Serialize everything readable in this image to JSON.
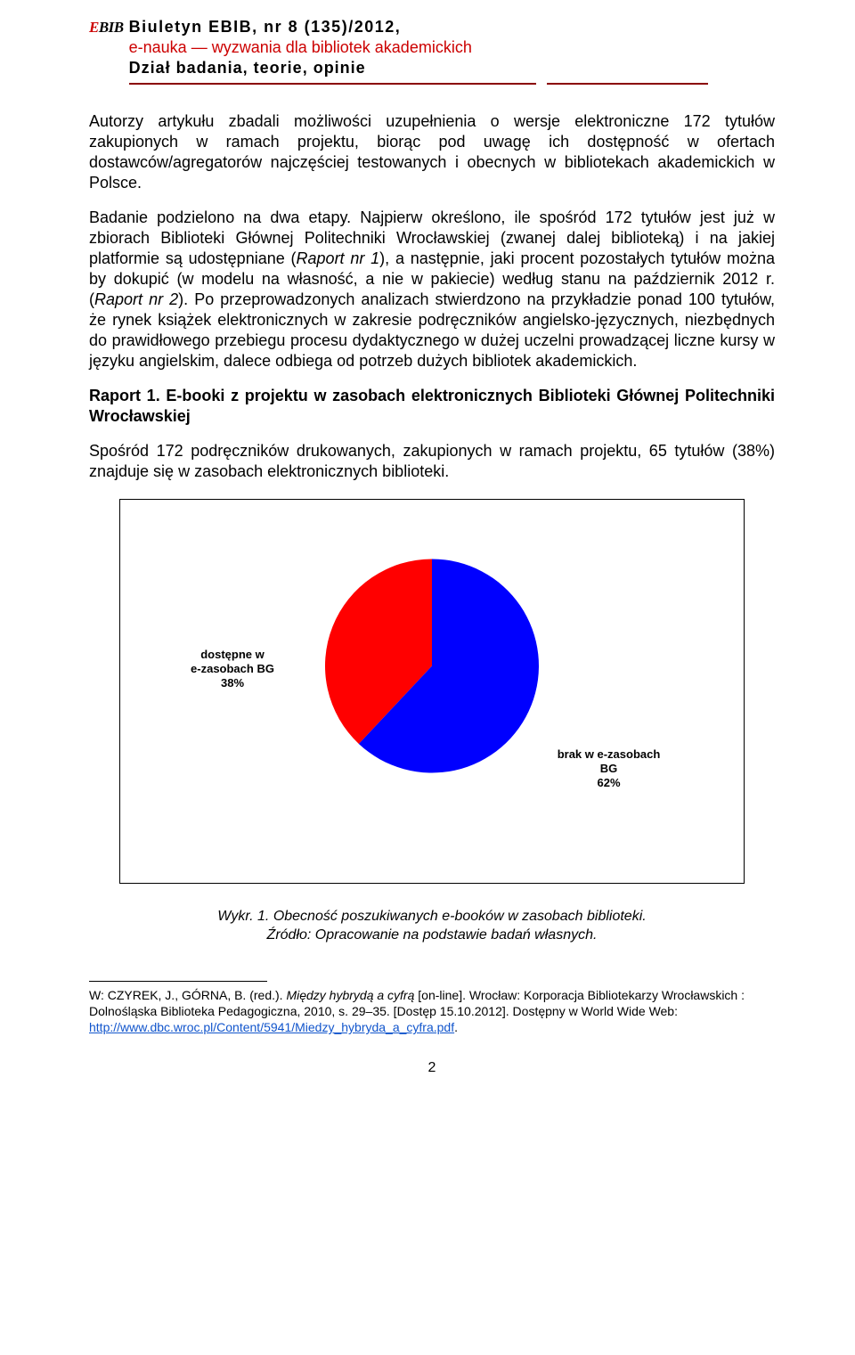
{
  "header": {
    "logo_e": "E",
    "logo_rest": "BIB",
    "line1": "Biuletyn EBIB, nr 8 (135)/2012,",
    "line2": "e-nauka — wyzwania dla bibliotek akademickich",
    "line3": "Dział badania, teorie, opinie"
  },
  "body": {
    "p1": "Autorzy artykułu zbadali możliwości uzupełnienia o wersje elektroniczne 172 tytułów zakupionych w ramach projektu, biorąc pod uwagę ich dostępność w ofertach dostawców/agregatorów najczęściej testowanych i obecnych w bibliotekach akademickich w Polsce.",
    "p2a": "Badanie podzielono na dwa etapy. Najpierw określono, ile spośród 172 tytułów jest już w zbiorach Biblioteki Głównej Politechniki Wrocławskiej (zwanej dalej biblioteką) i na jakiej platformie są udostępniane (",
    "p2_em1": "Raport nr 1",
    "p2b": "), a następnie, jaki procent pozostałych tytułów można by dokupić (w modelu na własność, a nie w pakiecie) według stanu na październik 2012 r. (",
    "p2_em2": "Raport nr 2",
    "p2c": "). Po przeprowadzonych analizach stwierdzono na przykładzie ponad 100 tytułów, że rynek książek elektronicznych w zakresie podręczników angielsko-języcznych, niezbędnych do prawidłowego przebiegu procesu dydaktycznego w dużej uczelni prowadzącej liczne kursy w języku angielskim, dalece odbiega od potrzeb dużych bibliotek akademickich.",
    "p3_bold": "Raport 1. E-booki z projektu w zasobach elektronicznych Biblioteki Głównej Politechniki Wrocławskiej",
    "p4": "Spośród 172 podręczników drukowanych, zakupionych w ramach projektu, 65 tytułów (38%) znajduje się w zasobach elektronicznych biblioteki."
  },
  "chart": {
    "type": "pie",
    "radius": 120,
    "slices": [
      {
        "value": 38,
        "color": "#ff0000",
        "label_lines": [
          "dostępne w",
          "e-zasobach BG",
          "38%"
        ]
      },
      {
        "value": 62,
        "color": "#0000ff",
        "label_lines": [
          "brak w e-zasobach",
          "BG",
          "62%"
        ]
      }
    ],
    "border_color": "#000000",
    "background_color": "#ffffff"
  },
  "caption_line1": "Wykr. 1. Obecność poszukiwanych e-booków w zasobach biblioteki.",
  "caption_line2": "Źródło: Opracowanie na podstawie badań własnych.",
  "footnote": {
    "text_a": "W: CZYREK, J., GÓRNA, B. (red.). ",
    "text_em": "Między hybrydą a cyfrą",
    "text_b": " [on-line]. Wrocław: Korporacja Bibliotekarzy Wrocławskich : Dolnośląska Biblioteka Pedagogiczna, 2010, s. 29–35. [Dostęp 15.10.2012]. Dostępny w World Wide Web: ",
    "url": "http://www.dbc.wroc.pl/Content/5941/Miedzy_hybryda_a_cyfra.pdf",
    "text_c": "."
  },
  "page_number": "2"
}
